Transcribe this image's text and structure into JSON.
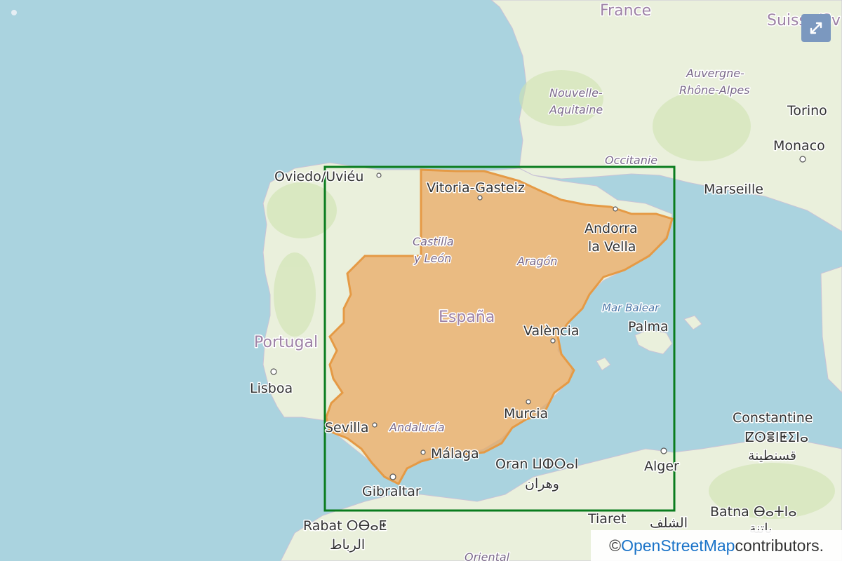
{
  "map": {
    "colors": {
      "sea": "#aad3df",
      "land": "#eaf0dc",
      "highlight_fill": "#e9a964",
      "highlight_stroke": "#e59a45",
      "bbox_stroke": "#0a7c1e"
    },
    "labels": {
      "france": "France",
      "suisse": "Suisse/Sv",
      "svizz": "Sviz",
      "nouvelle": "Nouvelle-",
      "aquitaine": "Aquitaine",
      "auvergne": "Auvergne-",
      "rhone": "Rhône-Alpes",
      "occitanie": "Occitanie",
      "torino": "Torino",
      "monaco": "Monaco",
      "marseille": "Marseille",
      "oviedo": "Oviedo/Uviéu",
      "vitoria": "Vitoria-Gasteiz",
      "andorra1": "Andorra",
      "andorra2": "la Vella",
      "castilla1": "Castilla",
      "castilla2": "y León",
      "aragon": "Aragón",
      "espana": "España",
      "valencia": "València",
      "mar_balear": "Mar Balear",
      "palma": "Palma",
      "portugal": "Portugal",
      "lisboa": "Lisboa",
      "sevilla": "Sevilla",
      "andalucia": "Andalucía",
      "murcia": "Murcia",
      "malaga": "Málaga",
      "oran": "Oran ⵡⵀⵔⴰⵏ",
      "oran_ar": "وهران",
      "alger": "Alger",
      "gibraltar": "Gibraltar",
      "rabat": "Rabat ⵔⴱⴰⵟ",
      "rabat_ar": "الرباط",
      "tiaret": "Tiaret",
      "constantine": "Constantine",
      "constantine_tz": "ⵇⵙⴻⵏⵟⵉⵏⴰ",
      "constantine_ar": "قسنطينة",
      "batna": "Batna ⴱⴰⵜⵏⴰ",
      "batna_ar": "باتنة",
      "chlef_ar": "الشلف",
      "oriental": "Oriental"
    }
  },
  "controls": {
    "expand_icon": "expand-arrows-icon"
  },
  "attribution": {
    "prefix": "© ",
    "link": "OpenStreetMap",
    "suffix": " contributors."
  }
}
